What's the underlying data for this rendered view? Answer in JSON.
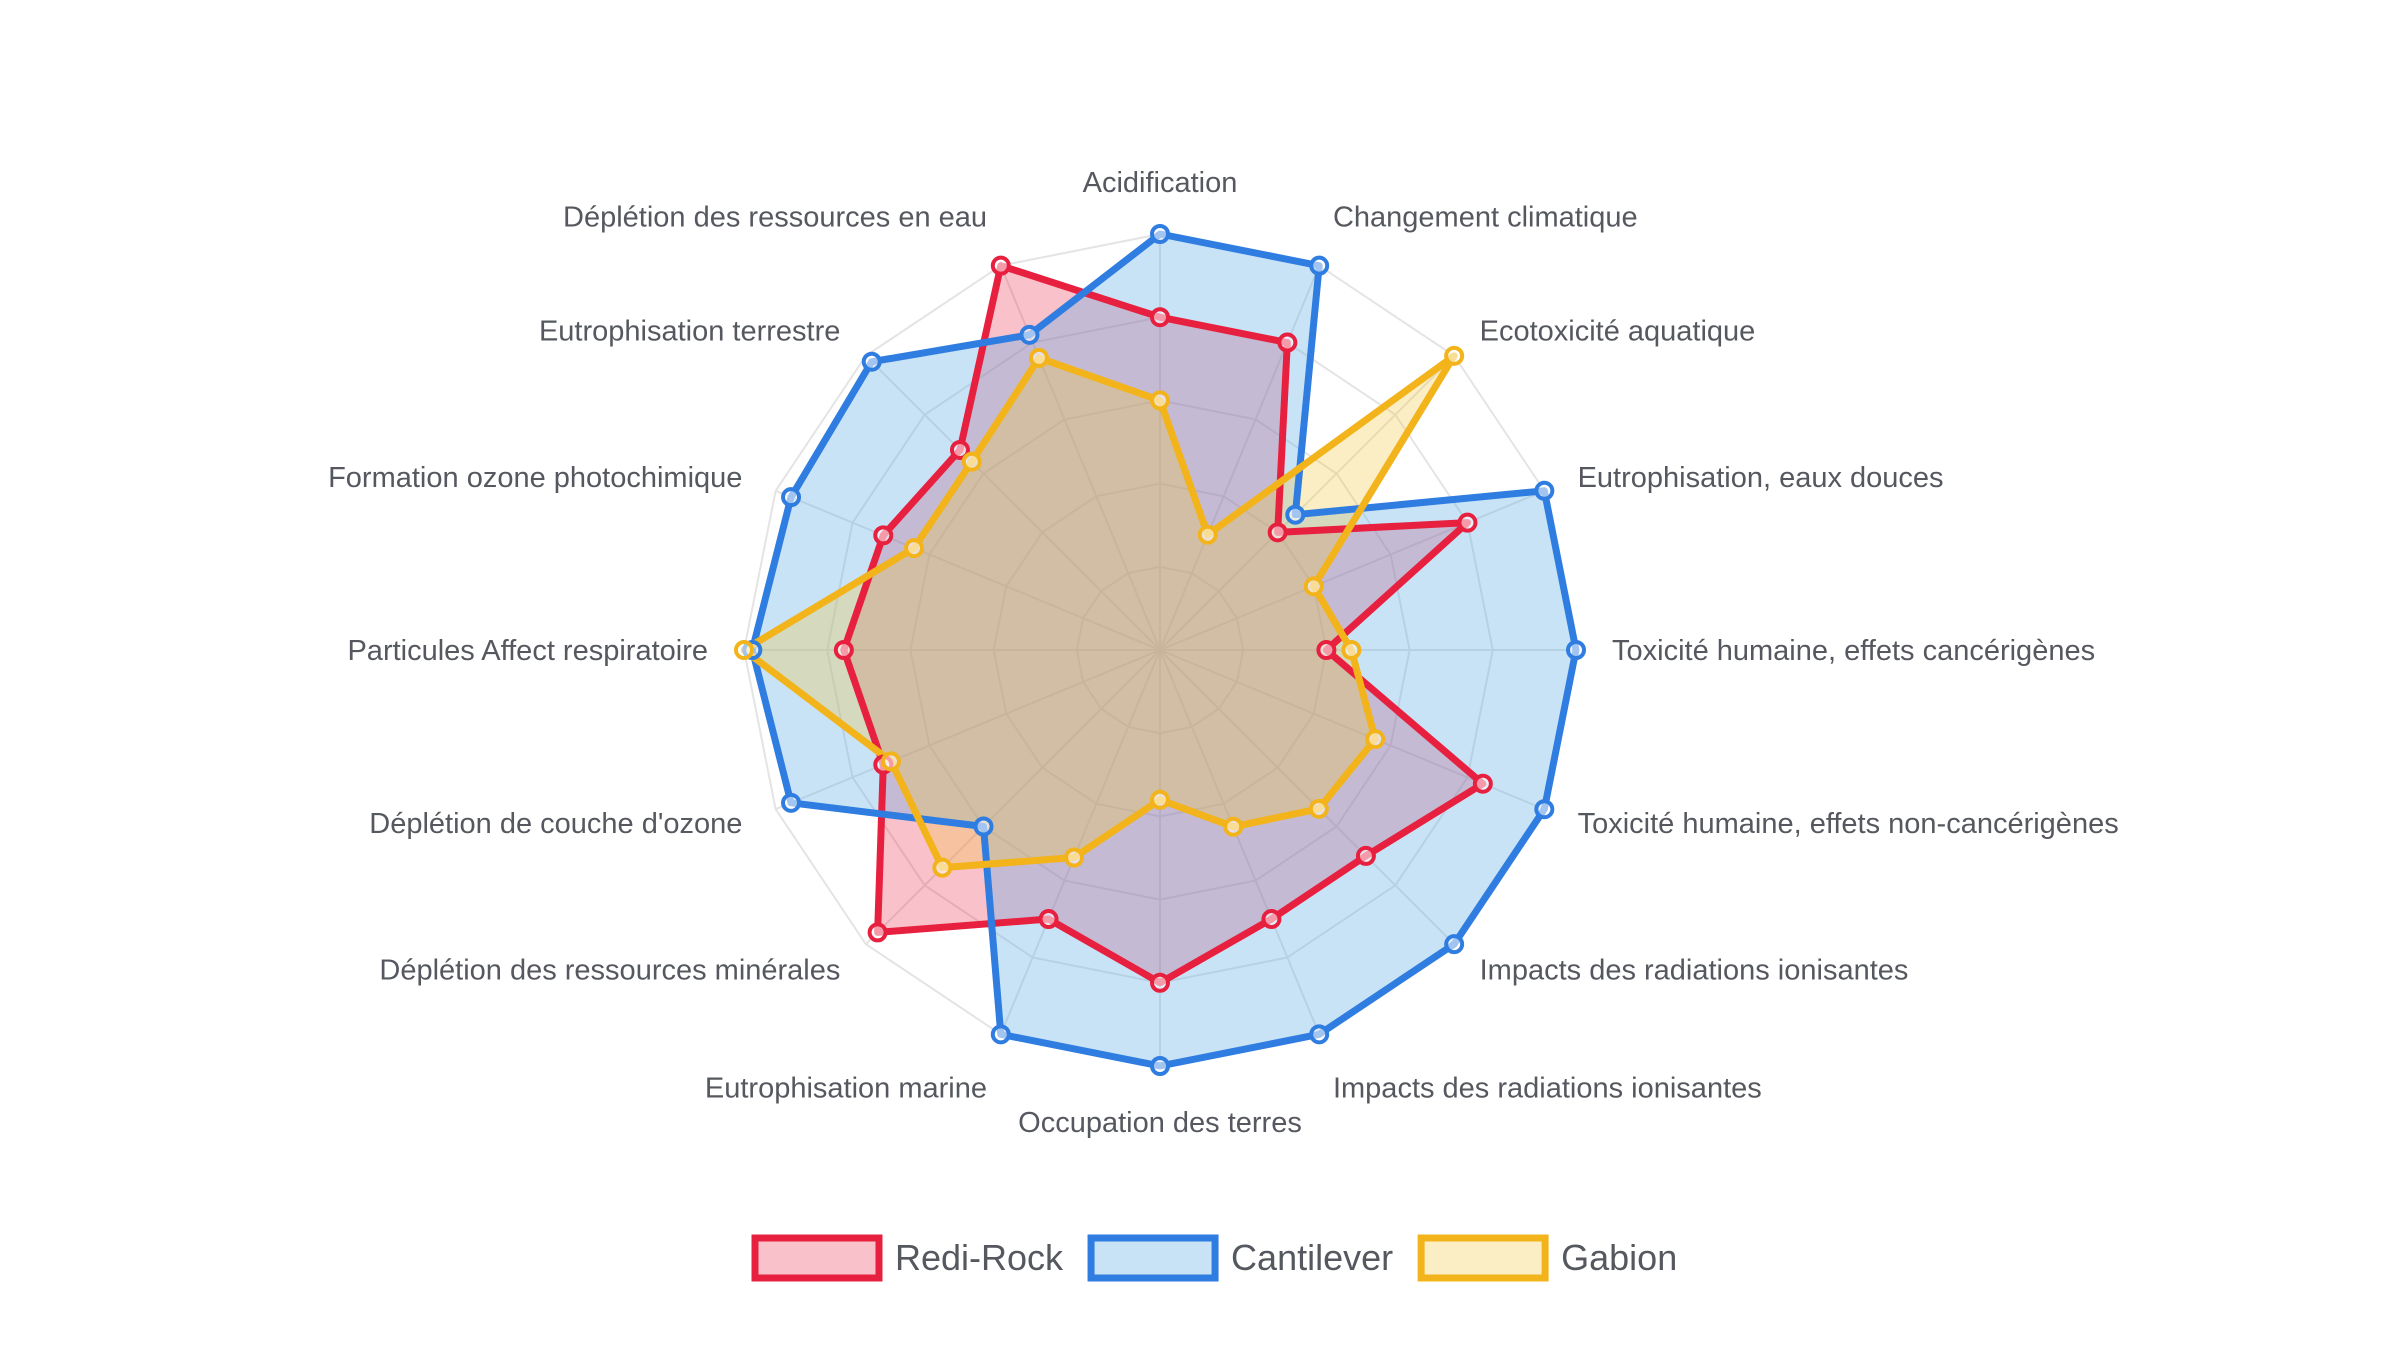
{
  "chart_data": {
    "type": "radar",
    "title": "",
    "categories": [
      "Acidification",
      "Changement climatique",
      "Ecotoxicité aquatique",
      "Eutrophisation, eaux douces",
      "Toxicité humaine, effets cancérigènes",
      "Toxicité humaine, effets non-cancérigènes",
      "Impacts des radiations ionisantes",
      "Impacts des radiations ionisantes",
      "Occupation des terres",
      "Eutrophisation marine",
      "Déplétion des ressources minérales",
      "Déplétion de couche d'ozone",
      "Particules Affect respiratoire",
      "Formation ozone photochimique",
      "Eutrophisation terrestre",
      "Déplétion des ressources en eau"
    ],
    "rlim": [
      0,
      5
    ],
    "grid": true,
    "legend_position": "bottom",
    "series": [
      {
        "name": "Redi-Rock",
        "color": "#e8203f",
        "fill": "rgba(232,32,63,0.28)",
        "values": [
          4.0,
          4.0,
          2.0,
          4.0,
          2.0,
          4.2,
          3.5,
          3.5,
          4.0,
          3.5,
          4.8,
          3.6,
          3.8,
          3.6,
          3.4,
          5.0
        ]
      },
      {
        "name": "Cantilever",
        "color": "#2f7de0",
        "fill": "rgba(100,175,228,0.35)",
        "values": [
          5.0,
          5.0,
          2.3,
          5.0,
          5.0,
          5.0,
          5.0,
          5.0,
          5.0,
          5.0,
          3.0,
          4.8,
          4.9,
          4.8,
          4.9,
          4.1
        ]
      },
      {
        "name": "Gabion",
        "color": "#f2b41a",
        "fill": "rgba(242,200,60,0.30)",
        "values": [
          3.0,
          1.5,
          5.0,
          2.0,
          2.3,
          2.8,
          2.7,
          2.3,
          1.8,
          2.7,
          3.7,
          3.5,
          5.0,
          3.2,
          3.2,
          3.8
        ]
      }
    ]
  }
}
